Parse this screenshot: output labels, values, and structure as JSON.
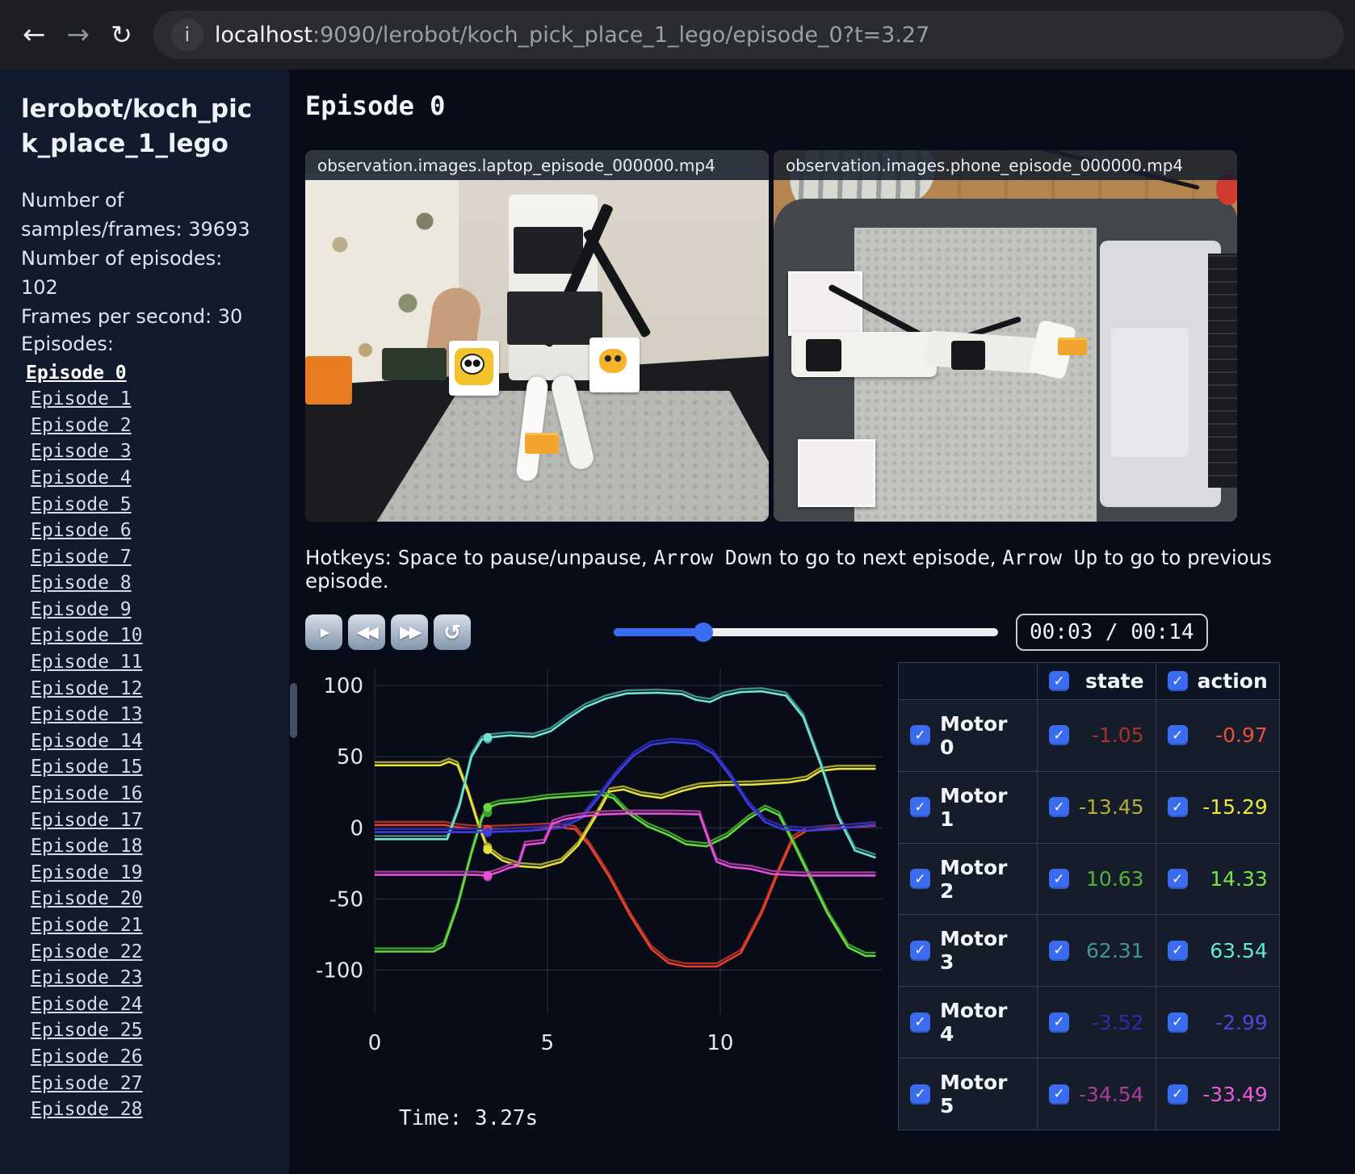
{
  "browser": {
    "back_icon": "←",
    "forward_icon": "→",
    "reload_icon": "↻",
    "info_icon": "i",
    "url_host": "localhost",
    "url_rest": ":9090/lerobot/koch_pick_place_1_lego/episode_0?t=3.27"
  },
  "sidebar": {
    "title": "lerobot/koch_pick_place_1_lego",
    "stats": [
      "Number of samples/frames: 39693",
      "Number of episodes: 102",
      "Frames per second: 30"
    ],
    "episodes_label": "Episodes:",
    "active_episode": "Episode 0",
    "episodes": [
      "Episode 1",
      "Episode 2",
      "Episode 3",
      "Episode 4",
      "Episode 5",
      "Episode 6",
      "Episode 7",
      "Episode 8",
      "Episode 9",
      "Episode 10",
      "Episode 11",
      "Episode 12",
      "Episode 13",
      "Episode 14",
      "Episode 15",
      "Episode 16",
      "Episode 17",
      "Episode 18",
      "Episode 19",
      "Episode 20",
      "Episode 21",
      "Episode 22",
      "Episode 23",
      "Episode 24",
      "Episode 25",
      "Episode 26",
      "Episode 27",
      "Episode 28"
    ]
  },
  "main": {
    "heading": "Episode 0",
    "videos": [
      {
        "title": "observation.images.laptop_episode_000000.mp4"
      },
      {
        "title": "observation.images.phone_episode_000000.mp4"
      }
    ],
    "hotkeys_parts": [
      {
        "text": "Hotkeys: ",
        "mono": false
      },
      {
        "text": "Space",
        "mono": true
      },
      {
        "text": " to pause/unpause, ",
        "mono": false
      },
      {
        "text": "Arrow Down",
        "mono": true
      },
      {
        "text": " to go to next episode, ",
        "mono": false
      },
      {
        "text": "Arrow Up",
        "mono": true
      },
      {
        "text": " to go to previous episode.",
        "mono": false
      }
    ],
    "player": {
      "play_icon": "▶",
      "rewind_icon": "◀◀",
      "forward_icon": "▶▶",
      "loop_icon": "↺",
      "time_display": "00:03 / 00:14",
      "progress_pct": 23.4
    },
    "time_label": "Time: 3.27s"
  },
  "table": {
    "state_header": "state",
    "action_header": "action",
    "rows": [
      {
        "name": "Motor 0",
        "state": "-1.05",
        "action": "-0.97",
        "state_color": "#a83228",
        "action_color": "#ef4f3c"
      },
      {
        "name": "Motor 1",
        "state": "-13.45",
        "action": "-15.29",
        "state_color": "#b2ae38",
        "action_color": "#ece63e"
      },
      {
        "name": "Motor 2",
        "state": "10.63",
        "action": "14.33",
        "state_color": "#53b13b",
        "action_color": "#74e845"
      },
      {
        "name": "Motor 3",
        "state": "62.31",
        "action": "63.54",
        "state_color": "#48938a",
        "action_color": "#63e8d6"
      },
      {
        "name": "Motor 4",
        "state": "-3.52",
        "action": "-2.99",
        "state_color": "#2b2cae",
        "action_color": "#4a4ad9"
      },
      {
        "name": "Motor 5",
        "state": "-34.54",
        "action": "-33.49",
        "state_color": "#aa3d9a",
        "action_color": "#ee59de"
      }
    ]
  },
  "chart_data": {
    "type": "line",
    "title": "",
    "xlabel": "",
    "ylabel": "",
    "x_ticks": [
      0,
      5,
      10
    ],
    "y_ticks": [
      100,
      50,
      0,
      -50,
      -100
    ],
    "xlim": [
      0,
      14.7
    ],
    "ylim": [
      -131,
      112
    ],
    "grid": true,
    "legend_position": "none",
    "current_time": 3.27,
    "state_offset": 2.2,
    "series": [
      {
        "name": "Motor 0",
        "state_color": "#a83228",
        "action_color": "#e8402a",
        "state_value": -1.05,
        "action_value": -0.97,
        "points": [
          [
            0,
            2
          ],
          [
            2.0,
            2
          ],
          [
            2.4,
            0.5
          ],
          [
            2.8,
            -0.5
          ],
          [
            3.27,
            -0.97
          ],
          [
            4.3,
            0
          ],
          [
            5.2,
            1
          ],
          [
            5.8,
            -1
          ],
          [
            6.2,
            -12
          ],
          [
            6.8,
            -35
          ],
          [
            7.4,
            -62
          ],
          [
            8.0,
            -85
          ],
          [
            8.5,
            -95
          ],
          [
            9.0,
            -97.5
          ],
          [
            9.9,
            -97.5
          ],
          [
            10.6,
            -88
          ],
          [
            11.2,
            -60
          ],
          [
            11.7,
            -30
          ],
          [
            12.1,
            -8
          ],
          [
            12.5,
            -2
          ],
          [
            13.2,
            -0.5
          ],
          [
            14.5,
            1.5
          ]
        ]
      },
      {
        "name": "Motor 1",
        "state_color": "#a9a52c",
        "action_color": "#e6e13b",
        "state_value": -13.45,
        "action_value": -15.29,
        "points": [
          [
            0,
            44
          ],
          [
            1.9,
            44
          ],
          [
            2.15,
            46.5
          ],
          [
            2.4,
            44
          ],
          [
            2.7,
            25
          ],
          [
            3.0,
            2
          ],
          [
            3.27,
            -15.3
          ],
          [
            3.7,
            -23
          ],
          [
            4.2,
            -27
          ],
          [
            4.8,
            -28
          ],
          [
            5.4,
            -24
          ],
          [
            5.9,
            -12
          ],
          [
            6.4,
            8
          ],
          [
            6.8,
            25.5
          ],
          [
            7.2,
            27
          ],
          [
            7.7,
            23
          ],
          [
            8.3,
            21
          ],
          [
            8.9,
            26
          ],
          [
            9.4,
            29
          ],
          [
            10.0,
            30
          ],
          [
            11.0,
            30.5
          ],
          [
            12.0,
            32
          ],
          [
            12.5,
            34
          ],
          [
            12.9,
            40
          ],
          [
            13.4,
            41.5
          ],
          [
            14.5,
            41.5
          ]
        ]
      },
      {
        "name": "Motor 2",
        "state_color": "#3f9e2a",
        "action_color": "#67d83f",
        "state_value": 10.63,
        "action_value": 14.33,
        "points": [
          [
            0,
            -87
          ],
          [
            1.7,
            -87
          ],
          [
            2.0,
            -83
          ],
          [
            2.4,
            -55
          ],
          [
            2.8,
            -18
          ],
          [
            3.1,
            6
          ],
          [
            3.27,
            14.3
          ],
          [
            3.6,
            17
          ],
          [
            4.3,
            18.5
          ],
          [
            5.0,
            21
          ],
          [
            5.9,
            22.5
          ],
          [
            6.5,
            23.5
          ],
          [
            6.9,
            21
          ],
          [
            7.3,
            11
          ],
          [
            7.9,
            1
          ],
          [
            8.5,
            -5
          ],
          [
            9.0,
            -11.5
          ],
          [
            9.6,
            -13
          ],
          [
            10.2,
            -6
          ],
          [
            10.8,
            6
          ],
          [
            11.3,
            13.5
          ],
          [
            11.7,
            9
          ],
          [
            12.1,
            -10
          ],
          [
            12.6,
            -35
          ],
          [
            13.1,
            -60
          ],
          [
            13.7,
            -84
          ],
          [
            14.2,
            -90
          ],
          [
            14.5,
            -90
          ]
        ]
      },
      {
        "name": "Motor 3",
        "state_color": "#3f8f86",
        "action_color": "#6fe3d4",
        "state_value": 62.31,
        "action_value": 63.54,
        "points": [
          [
            0,
            -8
          ],
          [
            2.1,
            -8
          ],
          [
            2.45,
            15
          ],
          [
            2.8,
            50
          ],
          [
            3.1,
            62
          ],
          [
            3.27,
            63.5
          ],
          [
            3.9,
            65
          ],
          [
            4.6,
            64
          ],
          [
            5.1,
            68
          ],
          [
            5.6,
            77
          ],
          [
            6.1,
            85
          ],
          [
            6.7,
            91
          ],
          [
            7.3,
            94.5
          ],
          [
            8.2,
            95
          ],
          [
            8.9,
            94
          ],
          [
            9.3,
            90
          ],
          [
            9.7,
            88.5
          ],
          [
            10.1,
            93
          ],
          [
            10.6,
            95.5
          ],
          [
            11.2,
            96
          ],
          [
            11.9,
            93
          ],
          [
            12.4,
            78
          ],
          [
            12.9,
            45
          ],
          [
            13.4,
            8
          ],
          [
            13.9,
            -16
          ],
          [
            14.5,
            -21
          ]
        ]
      },
      {
        "name": "Motor 4",
        "state_color": "#2828a8",
        "action_color": "#3c3ce0",
        "state_value": -3.52,
        "action_value": -2.99,
        "points": [
          [
            0,
            -3
          ],
          [
            3.0,
            -3
          ],
          [
            3.27,
            -3
          ],
          [
            4.5,
            -2
          ],
          [
            5.4,
            0
          ],
          [
            6.0,
            7
          ],
          [
            6.5,
            22
          ],
          [
            7.0,
            38
          ],
          [
            7.5,
            51
          ],
          [
            8.0,
            58.5
          ],
          [
            8.6,
            60.5
          ],
          [
            9.3,
            59
          ],
          [
            9.8,
            52
          ],
          [
            10.3,
            36
          ],
          [
            10.8,
            17
          ],
          [
            11.3,
            4
          ],
          [
            11.8,
            -1
          ],
          [
            12.5,
            -2
          ],
          [
            13.3,
            -1
          ],
          [
            14.0,
            1
          ],
          [
            14.5,
            2
          ]
        ]
      },
      {
        "name": "Motor 5",
        "state_color": "#a23897",
        "action_color": "#e64fd6",
        "state_value": -34.54,
        "action_value": -33.49,
        "points": [
          [
            0,
            -33
          ],
          [
            2.9,
            -33
          ],
          [
            3.27,
            -33.5
          ],
          [
            3.6,
            -31
          ],
          [
            3.9,
            -28
          ],
          [
            4.15,
            -27
          ],
          [
            4.35,
            -12
          ],
          [
            4.9,
            -10.5
          ],
          [
            5.15,
            3
          ],
          [
            5.5,
            6
          ],
          [
            6.0,
            8
          ],
          [
            6.6,
            9.5
          ],
          [
            7.3,
            10
          ],
          [
            8.6,
            10
          ],
          [
            9.4,
            9.5
          ],
          [
            9.65,
            -8
          ],
          [
            9.9,
            -24
          ],
          [
            10.3,
            -27.5
          ],
          [
            10.9,
            -29
          ],
          [
            11.5,
            -32.5
          ],
          [
            12.4,
            -33.5
          ],
          [
            14.5,
            -33.5
          ]
        ]
      }
    ]
  }
}
